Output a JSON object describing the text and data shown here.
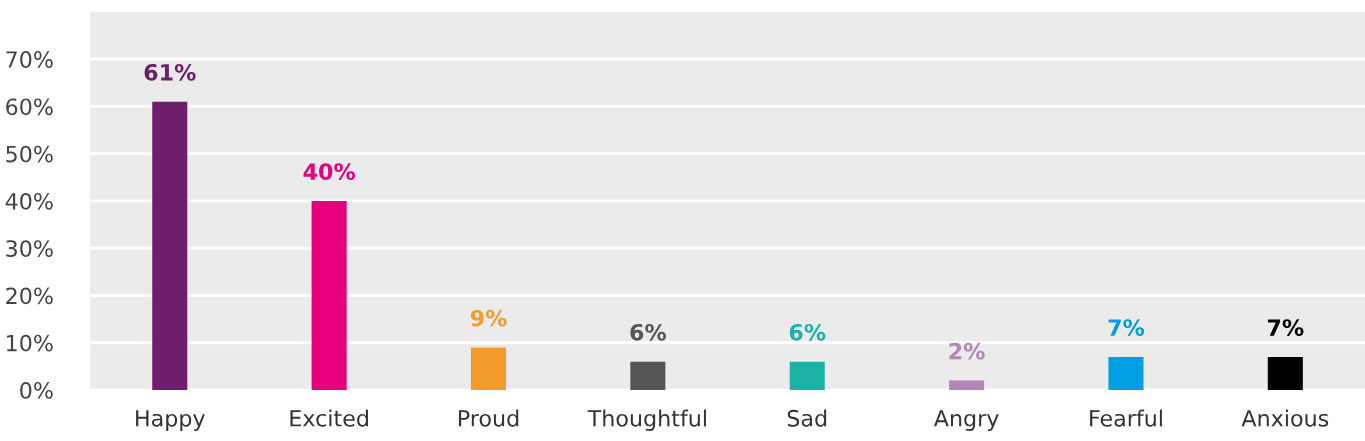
{
  "chart_data": {
    "type": "bar",
    "categories": [
      "Happy",
      "Excited",
      "Proud",
      "Thoughtful",
      "Sad",
      "Angry",
      "Fearful",
      "Anxious"
    ],
    "values": [
      61,
      40,
      9,
      6,
      6,
      2,
      7,
      7
    ],
    "colors": [
      "#6d1f6b",
      "#e6007e",
      "#f39c2e",
      "#555555",
      "#1ab3a6",
      "#b088b3",
      "#009fe3",
      "#000000"
    ],
    "value_labels": [
      "61%",
      "40%",
      "9%",
      "6%",
      "6%",
      "2%",
      "7%",
      "7%"
    ],
    "ylim": [
      0,
      80
    ],
    "yticks": [
      {
        "value": 0,
        "label": "0%"
      },
      {
        "value": 10,
        "label": "10%"
      },
      {
        "value": 20,
        "label": "20%"
      },
      {
        "value": 30,
        "label": "30%"
      },
      {
        "value": 40,
        "label": "40%"
      },
      {
        "value": 50,
        "label": "50%"
      },
      {
        "value": 60,
        "label": "60%"
      },
      {
        "value": 70,
        "label": "70%"
      }
    ],
    "grid": "y",
    "legend": false
  }
}
